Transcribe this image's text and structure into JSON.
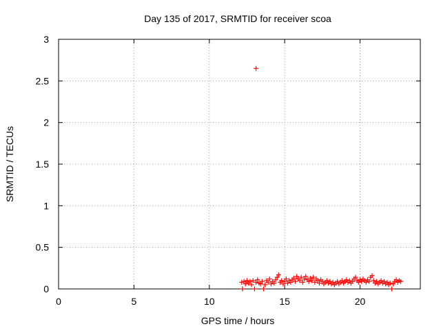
{
  "chart_data": {
    "type": "scatter",
    "title": "Day 135 of 2017, SRMTID for receiver scoa",
    "xlabel": "GPS time / hours",
    "ylabel": "SRMTID / TECUs",
    "xlim": [
      0,
      24
    ],
    "ylim": [
      0,
      3
    ],
    "xticks": [
      0,
      5,
      10,
      15,
      20
    ],
    "xtick_labels": [
      "0",
      "5",
      "10",
      "15",
      "20"
    ],
    "yticks": [
      0,
      0.5,
      1,
      1.5,
      2,
      2.5,
      3
    ],
    "ytick_labels": [
      "0",
      "0.5",
      "1",
      "1.5",
      "2",
      "2.5",
      "3"
    ],
    "grid": true,
    "marker": "+",
    "series": [
      {
        "name": "SRMTID",
        "color": "#ff0000",
        "points": [
          [
            12.15,
            0.08
          ],
          [
            12.2,
            0.0
          ],
          [
            12.3,
            0.09
          ],
          [
            12.4,
            0.06
          ],
          [
            12.5,
            0.1
          ],
          [
            12.6,
            0.07
          ],
          [
            12.7,
            0.09
          ],
          [
            12.8,
            0.05
          ],
          [
            12.9,
            0.1
          ],
          [
            13.0,
            0.0
          ],
          [
            13.1,
            0.08
          ],
          [
            13.2,
            0.11
          ],
          [
            13.3,
            0.07
          ],
          [
            13.4,
            0.06
          ],
          [
            13.5,
            0.09
          ],
          [
            13.6,
            0.0
          ],
          [
            13.7,
            0.05
          ],
          [
            13.8,
            0.1
          ],
          [
            13.9,
            0.08
          ],
          [
            14.0,
            0.12
          ],
          [
            14.1,
            0.06
          ],
          [
            14.2,
            0.09
          ],
          [
            14.3,
            0.07
          ],
          [
            14.4,
            0.11
          ],
          [
            14.5,
            0.14
          ],
          [
            14.6,
            0.17
          ],
          [
            14.7,
            0.08
          ],
          [
            14.8,
            0.1
          ],
          [
            14.9,
            0.06
          ],
          [
            15.0,
            0.09
          ],
          [
            15.1,
            0.12
          ],
          [
            15.2,
            0.07
          ],
          [
            15.3,
            0.1
          ],
          [
            15.4,
            0.08
          ],
          [
            15.5,
            0.11
          ],
          [
            15.6,
            0.13
          ],
          [
            15.7,
            0.09
          ],
          [
            15.8,
            0.15
          ],
          [
            15.9,
            0.12
          ],
          [
            16.0,
            0.1
          ],
          [
            16.1,
            0.14
          ],
          [
            16.2,
            0.08
          ],
          [
            16.3,
            0.12
          ],
          [
            16.4,
            0.15
          ],
          [
            16.5,
            0.11
          ],
          [
            16.6,
            0.09
          ],
          [
            16.7,
            0.13
          ],
          [
            16.8,
            0.1
          ],
          [
            16.9,
            0.14
          ],
          [
            17.0,
            0.08
          ],
          [
            17.1,
            0.12
          ],
          [
            17.2,
            0.1
          ],
          [
            17.3,
            0.07
          ],
          [
            17.4,
            0.11
          ],
          [
            17.5,
            0.09
          ],
          [
            17.6,
            0.06
          ],
          [
            17.7,
            0.08
          ],
          [
            17.8,
            0.1
          ],
          [
            17.9,
            0.07
          ],
          [
            18.0,
            0.09
          ],
          [
            18.1,
            0.06
          ],
          [
            18.2,
            0.08
          ],
          [
            18.3,
            0.05
          ],
          [
            18.4,
            0.07
          ],
          [
            18.5,
            0.09
          ],
          [
            18.6,
            0.06
          ],
          [
            18.7,
            0.08
          ],
          [
            18.8,
            0.1
          ],
          [
            18.9,
            0.07
          ],
          [
            19.0,
            0.09
          ],
          [
            19.1,
            0.11
          ],
          [
            19.2,
            0.08
          ],
          [
            19.3,
            0.1
          ],
          [
            19.4,
            0.07
          ],
          [
            19.5,
            0.09
          ],
          [
            19.6,
            0.12
          ],
          [
            19.7,
            0.14
          ],
          [
            19.8,
            0.1
          ],
          [
            19.9,
            0.08
          ],
          [
            20.0,
            0.11
          ],
          [
            20.1,
            0.09
          ],
          [
            20.2,
            0.12
          ],
          [
            20.3,
            0.1
          ],
          [
            20.4,
            0.08
          ],
          [
            20.5,
            0.11
          ],
          [
            20.6,
            0.09
          ],
          [
            20.7,
            0.14
          ],
          [
            20.8,
            0.16
          ],
          [
            20.9,
            0.1
          ],
          [
            21.0,
            0.07
          ],
          [
            21.1,
            0.09
          ],
          [
            21.2,
            0.06
          ],
          [
            21.3,
            0.08
          ],
          [
            21.4,
            0.1
          ],
          [
            21.5,
            0.07
          ],
          [
            21.6,
            0.09
          ],
          [
            21.7,
            0.06
          ],
          [
            21.8,
            0.08
          ],
          [
            21.9,
            0.05
          ],
          [
            22.0,
            0.07
          ],
          [
            22.1,
            0.0
          ],
          [
            22.2,
            0.06
          ],
          [
            22.3,
            0.09
          ],
          [
            22.4,
            0.11
          ],
          [
            22.5,
            0.08
          ],
          [
            22.6,
            0.1
          ],
          [
            22.7,
            0.09
          ],
          [
            13.1,
            2.65
          ]
        ]
      }
    ]
  }
}
